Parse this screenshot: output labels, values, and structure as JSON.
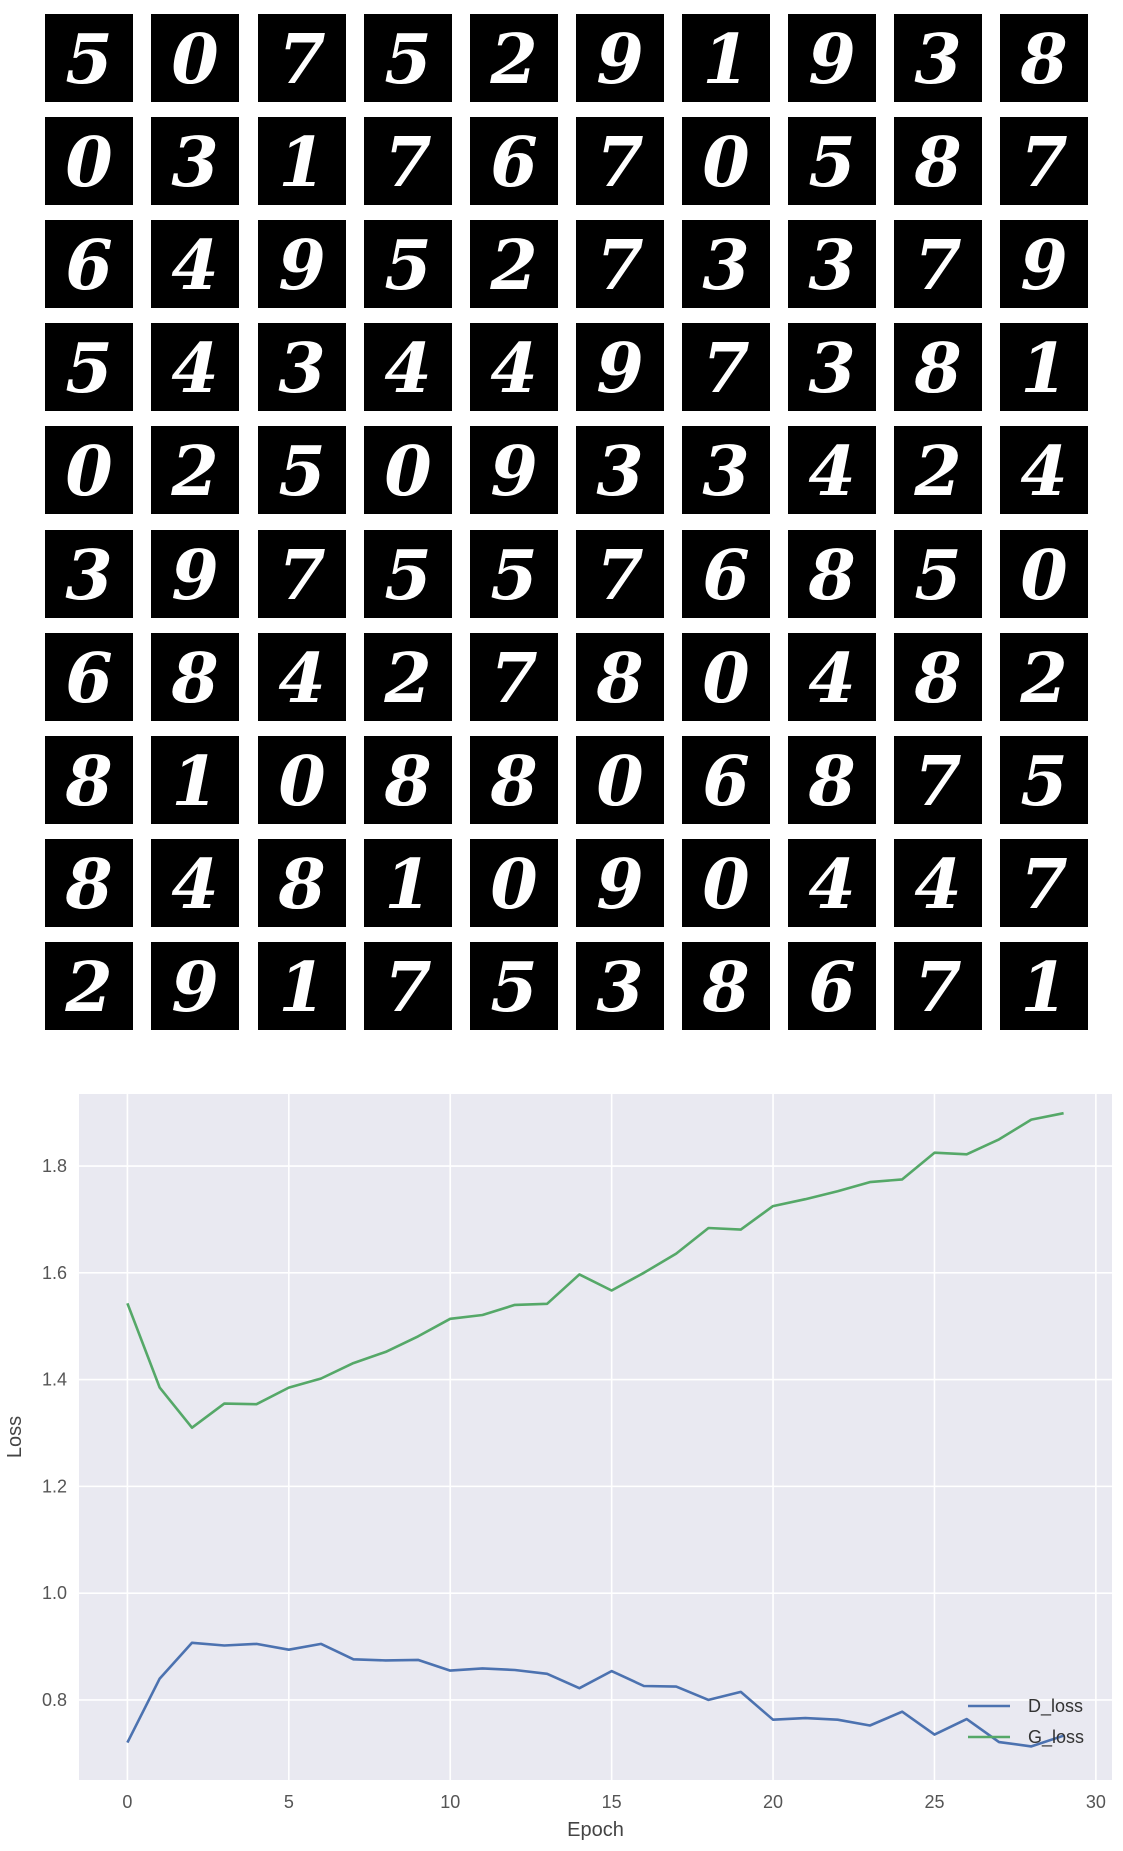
{
  "digit_grid": {
    "rows": [
      [
        "5",
        "0",
        "7",
        "5",
        "2",
        "9",
        "1",
        "9",
        "3",
        "8"
      ],
      [
        "0",
        "3",
        "1",
        "7",
        "6",
        "7",
        "0",
        "5",
        "8",
        "7"
      ],
      [
        "6",
        "4",
        "9",
        "5",
        "2",
        "7",
        "3",
        "3",
        "7",
        "9"
      ],
      [
        "5",
        "4",
        "3",
        "4",
        "4",
        "9",
        "7",
        "3",
        "8",
        "1"
      ],
      [
        "0",
        "2",
        "5",
        "0",
        "9",
        "3",
        "3",
        "4",
        "2",
        "4"
      ],
      [
        "3",
        "9",
        "7",
        "5",
        "5",
        "7",
        "6",
        "8",
        "5",
        "0"
      ],
      [
        "6",
        "8",
        "4",
        "2",
        "7",
        "8",
        "0",
        "4",
        "8",
        "2"
      ],
      [
        "8",
        "1",
        "0",
        "8",
        "8",
        "0",
        "6",
        "8",
        "7",
        "5"
      ],
      [
        "8",
        "4",
        "8",
        "1",
        "0",
        "9",
        "0",
        "4",
        "4",
        "7"
      ],
      [
        "2",
        "9",
        "1",
        "7",
        "5",
        "3",
        "8",
        "6",
        "7",
        "1"
      ]
    ],
    "tile_color": "#000000",
    "stroke_color": "#ffffff"
  },
  "chart_data": {
    "type": "line",
    "xlabel": "Epoch",
    "ylabel": "Loss",
    "xlim": [
      -1.5,
      30.5
    ],
    "ylim": [
      0.65,
      1.935
    ],
    "xticks": [
      0,
      5,
      10,
      15,
      20,
      25,
      30
    ],
    "yticks": [
      0.8,
      1.0,
      1.2,
      1.4,
      1.6,
      1.8
    ],
    "grid": true,
    "background": "#e9e9f1",
    "legend_position": "lower-right",
    "x": [
      0,
      1,
      2,
      3,
      4,
      5,
      6,
      7,
      8,
      9,
      10,
      11,
      12,
      13,
      14,
      15,
      16,
      17,
      18,
      19,
      20,
      21,
      22,
      23,
      24,
      25,
      26,
      27,
      28,
      29
    ],
    "series": [
      {
        "name": "D_loss",
        "color": "#4c72b0",
        "values": [
          0.72,
          0.84,
          0.907,
          0.902,
          0.905,
          0.894,
          0.905,
          0.876,
          0.874,
          0.875,
          0.855,
          0.859,
          0.856,
          0.849,
          0.822,
          0.854,
          0.826,
          0.825,
          0.8,
          0.815,
          0.763,
          0.766,
          0.763,
          0.752,
          0.778,
          0.735,
          0.764,
          0.721,
          0.713,
          0.733
        ]
      },
      {
        "name": "G_loss",
        "color": "#55a868",
        "values": [
          1.543,
          1.385,
          1.31,
          1.355,
          1.354,
          1.385,
          1.402,
          1.431,
          1.452,
          1.481,
          1.514,
          1.521,
          1.54,
          1.542,
          1.597,
          1.567,
          1.6,
          1.636,
          1.684,
          1.681,
          1.725,
          1.738,
          1.753,
          1.77,
          1.775,
          1.825,
          1.822,
          1.85,
          1.887,
          1.899
        ]
      }
    ]
  }
}
